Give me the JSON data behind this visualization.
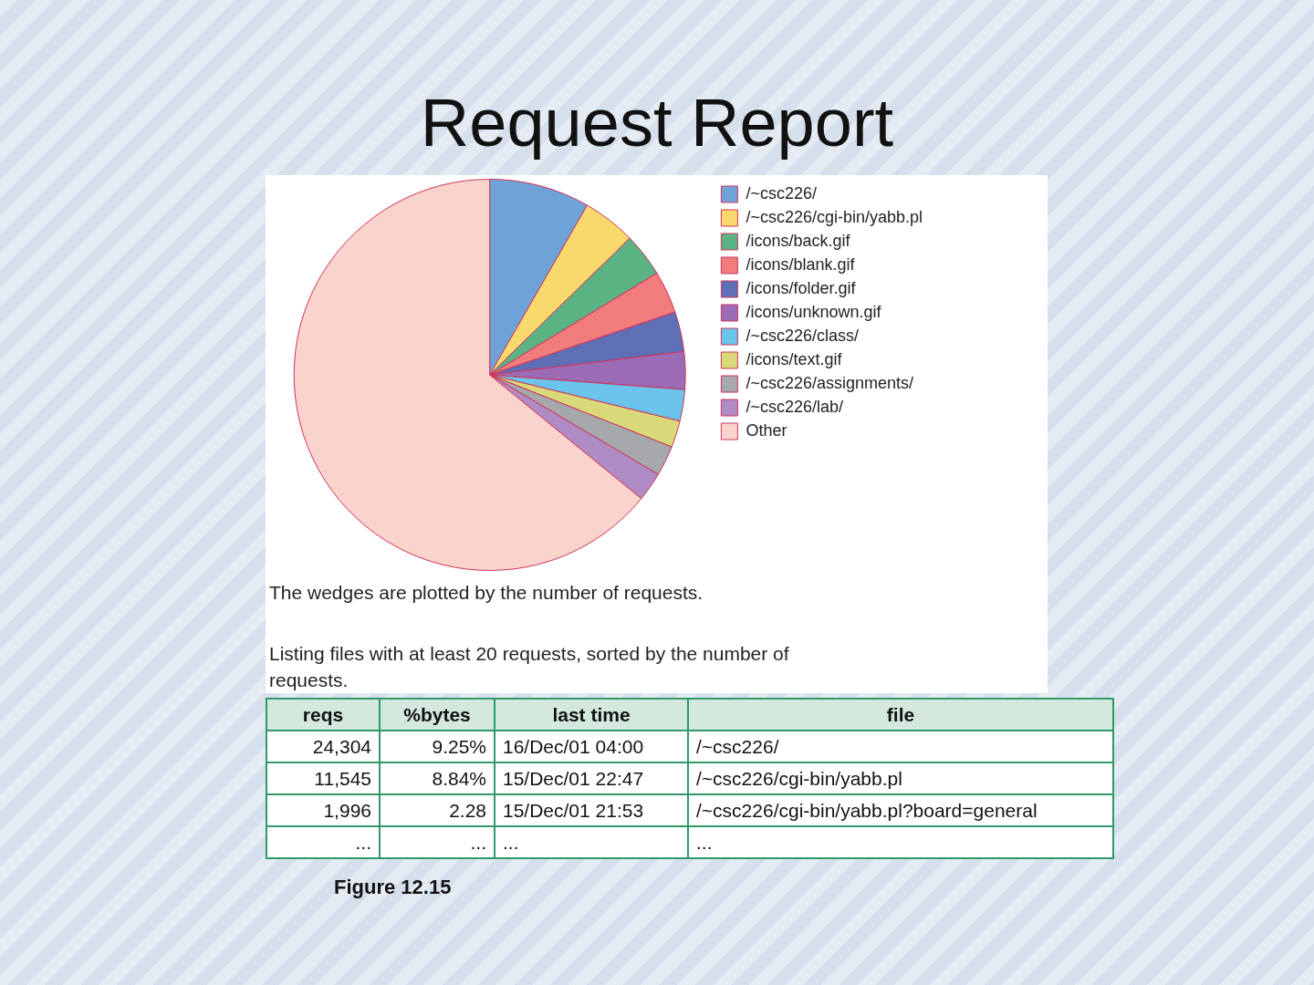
{
  "chart_data": {
    "type": "pie",
    "title": "Request Report",
    "categories": [
      "/~csc226/",
      "/~csc226/cgi-bin/yabb.pl",
      "/icons/back.gif",
      "/icons/blank.gif",
      "/icons/folder.gif",
      "/icons/unknown.gif",
      "/~csc226/class/",
      "/icons/text.gif",
      "/~csc226/assignments/",
      "/~csc226/lab/",
      "Other"
    ],
    "values": [
      8.3,
      4.4,
      3.6,
      3.5,
      3.3,
      3.1,
      2.6,
      2.2,
      2.5,
      2.4,
      64.1
    ],
    "colors": [
      "#6fa3d8",
      "#f9d96e",
      "#5bb383",
      "#f07c7c",
      "#5f6fb5",
      "#9b6bb5",
      "#6ac4ec",
      "#d9d97a",
      "#a6a8ab",
      "#b08cc4",
      "#f9d3cc"
    ],
    "legend": "top right",
    "annotations": [
      "The wedges are plotted by the number of requests.",
      "Listing files with at least 20 requests, sorted by the number of requests.",
      "reqs",
      "%bytes",
      "last time",
      "file",
      "24,304",
      "9.25%",
      "16/Dec/01 04:00",
      "/~csc226/",
      "11,545",
      "8.84%",
      "15/Dec/01 22:47",
      "/~csc226/cgi-bin/yabb.pl",
      "1,996",
      "2.28",
      "15/Dec/01 21:53",
      "/~csc226/cgi-bin/yabb.pl?board=general",
      "...",
      "...",
      "...",
      "...",
      "Figure 12.15"
    ]
  }
}
